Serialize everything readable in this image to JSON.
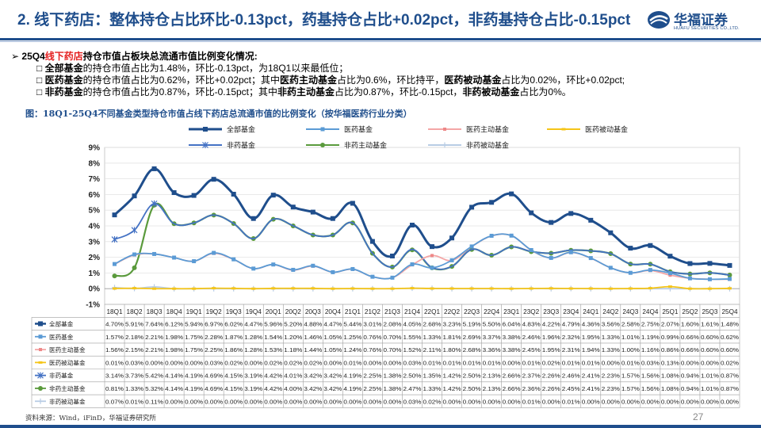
{
  "header": {
    "title": "2. 线下药店：整体持仓占比环比-0.13pct，药基持仓占比+0.02pct，非药基持仓占比-0.15pct",
    "logo_cn": "华福证券",
    "logo_en": "HUAFU SECURITIES CO.,LTD."
  },
  "bullets": {
    "main_prefix": "25Q4",
    "main_red": "线下药店",
    "main_suffix": "持仓市值占板块总流通市值比例变化情况:",
    "b1_bold": "全部基金",
    "b1_text": "的持仓市值占比为1.48%，环比-0.13pct，为18Q1以来最低位；",
    "b2_bold": "医药基金",
    "b2_text1": "的持仓市值占比为0.62%，环比+0.02pct；其中",
    "b2_bold2": "医药主动基金",
    "b2_text2": "占比为0.6%，环比持平，",
    "b2_bold3": "医药被动基金",
    "b2_text3": "占比为0.02%，环比+0.02pct;",
    "b3_bold": "非药基金",
    "b3_text1": "的持仓市值占比为0.87%，环比-0.15pct；其中",
    "b3_bold2": "非药主动基金",
    "b3_text2": "占比为0.87%，环比-0.15pct，",
    "b3_bold3": "非药被动基金",
    "b3_text3": "占比为0%。"
  },
  "chart_title": "图：18Q1-25Q4不同基金类型持仓市值占线下药店总流通市值的比例变化（按华福医药行业分类）",
  "footer": {
    "source": "资料来源：Wind，iFinD，华福证券研究所",
    "page": "27"
  },
  "colors": {
    "all": "#1f4e8c",
    "med": "#5b9bd5",
    "med_active": "#f4a6a6",
    "med_passive": "#f5c518",
    "nonmed": "#4472c4",
    "nonmed_active": "#5a9a3c",
    "nonmed_passive": "#b8cce4",
    "title": "#1f4e8c"
  },
  "chart_data": {
    "type": "line",
    "ylim": [
      -1,
      9
    ],
    "yticks": [
      "-1%",
      "0%",
      "1%",
      "2%",
      "3%",
      "4%",
      "5%",
      "6%",
      "7%",
      "8%",
      "9%"
    ],
    "categories": [
      "18Q1",
      "18Q2",
      "18Q3",
      "18Q4",
      "19Q1",
      "19Q2",
      "19Q3",
      "19Q4",
      "20Q1",
      "20Q2",
      "20Q3",
      "20Q4",
      "21Q1",
      "21Q2",
      "21Q3",
      "21Q4",
      "22Q1",
      "22Q2",
      "22Q3",
      "22Q4",
      "23Q1",
      "23Q2",
      "23Q3",
      "23Q4",
      "24Q1",
      "24Q2",
      "24Q3",
      "24Q4",
      "25Q1",
      "25Q2",
      "25Q3",
      "25Q4"
    ],
    "series": [
      {
        "name": "全部基金",
        "key": "all",
        "values": [
          4.7,
          5.91,
          7.64,
          6.12,
          5.94,
          6.97,
          6.02,
          4.47,
          5.96,
          5.2,
          4.88,
          4.47,
          5.44,
          3.01,
          2.08,
          4.05,
          2.68,
          3.23,
          5.19,
          5.5,
          6.04,
          4.83,
          4.22,
          4.79,
          4.36,
          3.56,
          2.58,
          2.75,
          2.07,
          1.6,
          1.61,
          1.48
        ],
        "labels": [
          "4.70%",
          "5.91%",
          "7.64%",
          "6.12%",
          "5.94%",
          "6.97%",
          "6.02%",
          "4.47%",
          "5.96%",
          "5.20%",
          "4.88%",
          "4.47%",
          "5.44%",
          "3.01%",
          "2.08%",
          "4.05%",
          "2.68%",
          "3.23%",
          "5.19%",
          "5.50%",
          "6.04%",
          "4.83%",
          "4.22%",
          "4.79%",
          "4.36%",
          "3.56%",
          "2.58%",
          "2.75%",
          "2.07%",
          "1.60%",
          "1.61%",
          "1.48%"
        ]
      },
      {
        "name": "医药基金",
        "key": "med",
        "values": [
          1.57,
          2.18,
          2.21,
          1.98,
          1.75,
          2.28,
          1.87,
          1.28,
          1.54,
          1.2,
          1.46,
          1.05,
          1.25,
          0.76,
          0.7,
          1.55,
          1.33,
          1.81,
          2.69,
          3.37,
          3.38,
          2.46,
          1.96,
          2.32,
          1.95,
          1.33,
          1.01,
          1.19,
          0.99,
          0.66,
          0.6,
          0.62
        ],
        "labels": [
          "1.57%",
          "2.18%",
          "2.21%",
          "1.98%",
          "1.75%",
          "2.28%",
          "1.87%",
          "1.28%",
          "1.54%",
          "1.20%",
          "1.46%",
          "1.05%",
          "1.25%",
          "0.76%",
          "0.70%",
          "1.55%",
          "1.33%",
          "1.81%",
          "2.69%",
          "3.37%",
          "3.38%",
          "2.46%",
          "1.96%",
          "2.32%",
          "1.95%",
          "1.33%",
          "1.01%",
          "1.19%",
          "0.99%",
          "0.66%",
          "0.60%",
          "0.62%"
        ]
      },
      {
        "name": "医药主动基金",
        "key": "med_active",
        "values": [
          1.56,
          2.15,
          2.21,
          1.98,
          1.75,
          2.25,
          1.86,
          1.28,
          1.53,
          1.18,
          1.44,
          1.05,
          1.24,
          0.76,
          0.7,
          1.52,
          2.11,
          1.8,
          2.68,
          3.36,
          3.38,
          2.45,
          1.95,
          2.31,
          1.94,
          1.33,
          1.0,
          1.16,
          0.86,
          0.66,
          0.6,
          0.6
        ],
        "labels": [
          "1.56%",
          "2.15%",
          "2.21%",
          "1.98%",
          "1.75%",
          "2.25%",
          "1.86%",
          "1.28%",
          "1.53%",
          "1.18%",
          "1.44%",
          "1.05%",
          "1.24%",
          "0.76%",
          "0.70%",
          "1.52%",
          "2.11%",
          "1.80%",
          "2.68%",
          "3.36%",
          "3.38%",
          "2.45%",
          "1.95%",
          "2.31%",
          "1.94%",
          "1.33%",
          "1.00%",
          "1.16%",
          "0.86%",
          "0.66%",
          "0.60%",
          "0.60%"
        ]
      },
      {
        "name": "医药被动基金",
        "key": "med_passive",
        "values": [
          0.01,
          0.03,
          0.0,
          0.0,
          0.0,
          0.03,
          0.02,
          0.0,
          0.02,
          0.02,
          0.02,
          0.0,
          0.01,
          0.0,
          0.0,
          0.03,
          0.01,
          0.01,
          0.01,
          0.01,
          0.0,
          0.01,
          0.02,
          0.01,
          0.01,
          0.0,
          0.01,
          0.03,
          0.13,
          0.0,
          0.0,
          0.02
        ],
        "labels": [
          "0.01%",
          "0.03%",
          "0.00%",
          "0.00%",
          "0.00%",
          "0.03%",
          "0.02%",
          "0.00%",
          "0.02%",
          "0.02%",
          "0.02%",
          "0.00%",
          "0.01%",
          "0.00%",
          "0.00%",
          "0.03%",
          "0.01%",
          "0.01%",
          "0.01%",
          "0.01%",
          "0.00%",
          "0.01%",
          "0.02%",
          "0.01%",
          "0.01%",
          "0.00%",
          "0.01%",
          "0.03%",
          "0.13%",
          "0.00%",
          "0.00%",
          "0.02%"
        ]
      },
      {
        "name": "非药基金",
        "key": "nonmed",
        "values": [
          3.14,
          3.73,
          5.42,
          4.14,
          4.19,
          4.69,
          4.15,
          3.19,
          4.42,
          4.01,
          3.42,
          3.42,
          4.19,
          2.25,
          1.38,
          2.5,
          1.35,
          1.42,
          2.5,
          2.13,
          2.66,
          2.37,
          2.26,
          2.46,
          2.41,
          2.23,
          1.57,
          1.56,
          1.08,
          0.94,
          1.01,
          0.87
        ],
        "labels": [
          "3.14%",
          "3.73%",
          "5.42%",
          "4.14%",
          "4.19%",
          "4.69%",
          "4.15%",
          "3.19%",
          "4.42%",
          "4.01%",
          "3.42%",
          "3.42%",
          "4.19%",
          "2.25%",
          "1.38%",
          "2.50%",
          "1.35%",
          "1.42%",
          "2.50%",
          "2.13%",
          "2.66%",
          "2.37%",
          "2.26%",
          "2.46%",
          "2.41%",
          "2.23%",
          "1.57%",
          "1.56%",
          "1.08%",
          "0.94%",
          "1.01%",
          "0.87%"
        ]
      },
      {
        "name": "非药主动基金",
        "key": "nonmed_active",
        "values": [
          0.81,
          1.33,
          5.32,
          4.14,
          4.19,
          4.69,
          4.15,
          3.19,
          4.42,
          4.0,
          3.42,
          3.42,
          4.19,
          2.25,
          1.38,
          2.47,
          1.33,
          1.42,
          2.5,
          2.13,
          2.66,
          2.36,
          2.26,
          2.45,
          2.41,
          2.23,
          1.57,
          1.56,
          1.08,
          0.94,
          1.01,
          0.87
        ],
        "labels": [
          "0.81%",
          "1.33%",
          "5.32%",
          "4.14%",
          "4.19%",
          "4.69%",
          "4.15%",
          "3.19%",
          "4.42%",
          "4.00%",
          "3.42%",
          "3.42%",
          "4.19%",
          "2.25%",
          "1.38%",
          "2.47%",
          "1.33%",
          "1.42%",
          "2.50%",
          "2.13%",
          "2.66%",
          "2.36%",
          "2.26%",
          "2.45%",
          "2.41%",
          "2.23%",
          "1.57%",
          "1.56%",
          "1.08%",
          "0.94%",
          "1.01%",
          "0.87%"
        ]
      },
      {
        "name": "非药被动基金",
        "key": "nonmed_passive",
        "values": [
          0.07,
          0.01,
          0.11,
          0.0,
          0.0,
          0.0,
          0.0,
          0.0,
          0.0,
          0.0,
          0.0,
          0.0,
          0.0,
          0.0,
          0.0,
          0.03,
          0.02,
          0.0,
          0.0,
          0.0,
          0.0,
          0.01,
          0.0,
          0.01,
          0.0,
          0.0,
          0.0,
          0.0,
          0.0,
          0.0,
          0.0,
          0.0
        ],
        "labels": [
          "0.07%",
          "0.01%",
          "0.11%",
          "0.00%",
          "0.00%",
          "0.00%",
          "0.00%",
          "0.00%",
          "0.00%",
          "0.00%",
          "0.00%",
          "0.00%",
          "0.00%",
          "0.00%",
          "0.00%",
          "0.03%",
          "0.02%",
          "0.00%",
          "0.00%",
          "0.00%",
          "0.00%",
          "0.01%",
          "0.00%",
          "0.01%",
          "0.00%",
          "0.00%",
          "0.00%",
          "0.00%",
          "0.00%",
          "0.00%",
          "0.00%",
          "0.00%"
        ]
      }
    ]
  }
}
